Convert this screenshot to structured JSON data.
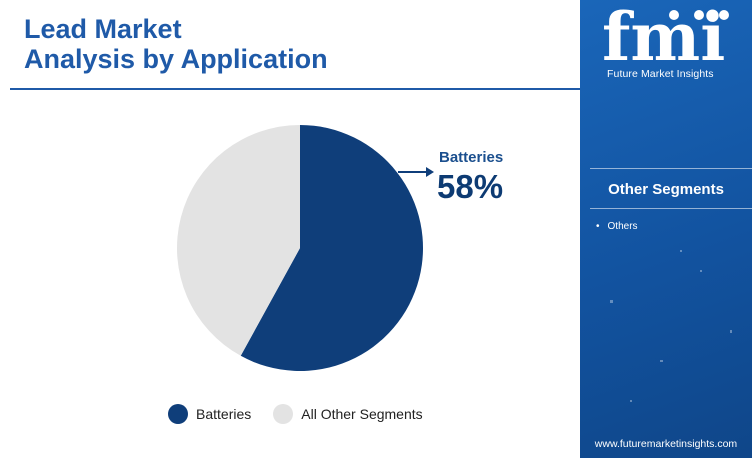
{
  "title_lines": [
    "Lead Market",
    "Analysis by Application"
  ],
  "chart_data": {
    "type": "pie",
    "slices": [
      {
        "label": "Batteries",
        "value": 58,
        "color": "#0f3e7a"
      },
      {
        "label": "All Other Segments",
        "value": 42,
        "color": "#e3e3e3"
      }
    ],
    "callout": {
      "label": "Batteries",
      "value": "58%"
    },
    "legend": {
      "items": [
        "Batteries",
        "All Other Segments"
      ],
      "placement": "bottom"
    }
  },
  "sidebar": {
    "logo_text": "fmi",
    "logo_subtitle": "Future Market Insights",
    "heading": "Other Segments",
    "items": [
      "Others"
    ],
    "url": "www.futuremarketinsights.com"
  },
  "colors": {
    "accent": "#1f5aa8",
    "sidebar": "#1560b0",
    "dark_slice": "#0f3e7a",
    "light_slice": "#e3e3e3"
  }
}
